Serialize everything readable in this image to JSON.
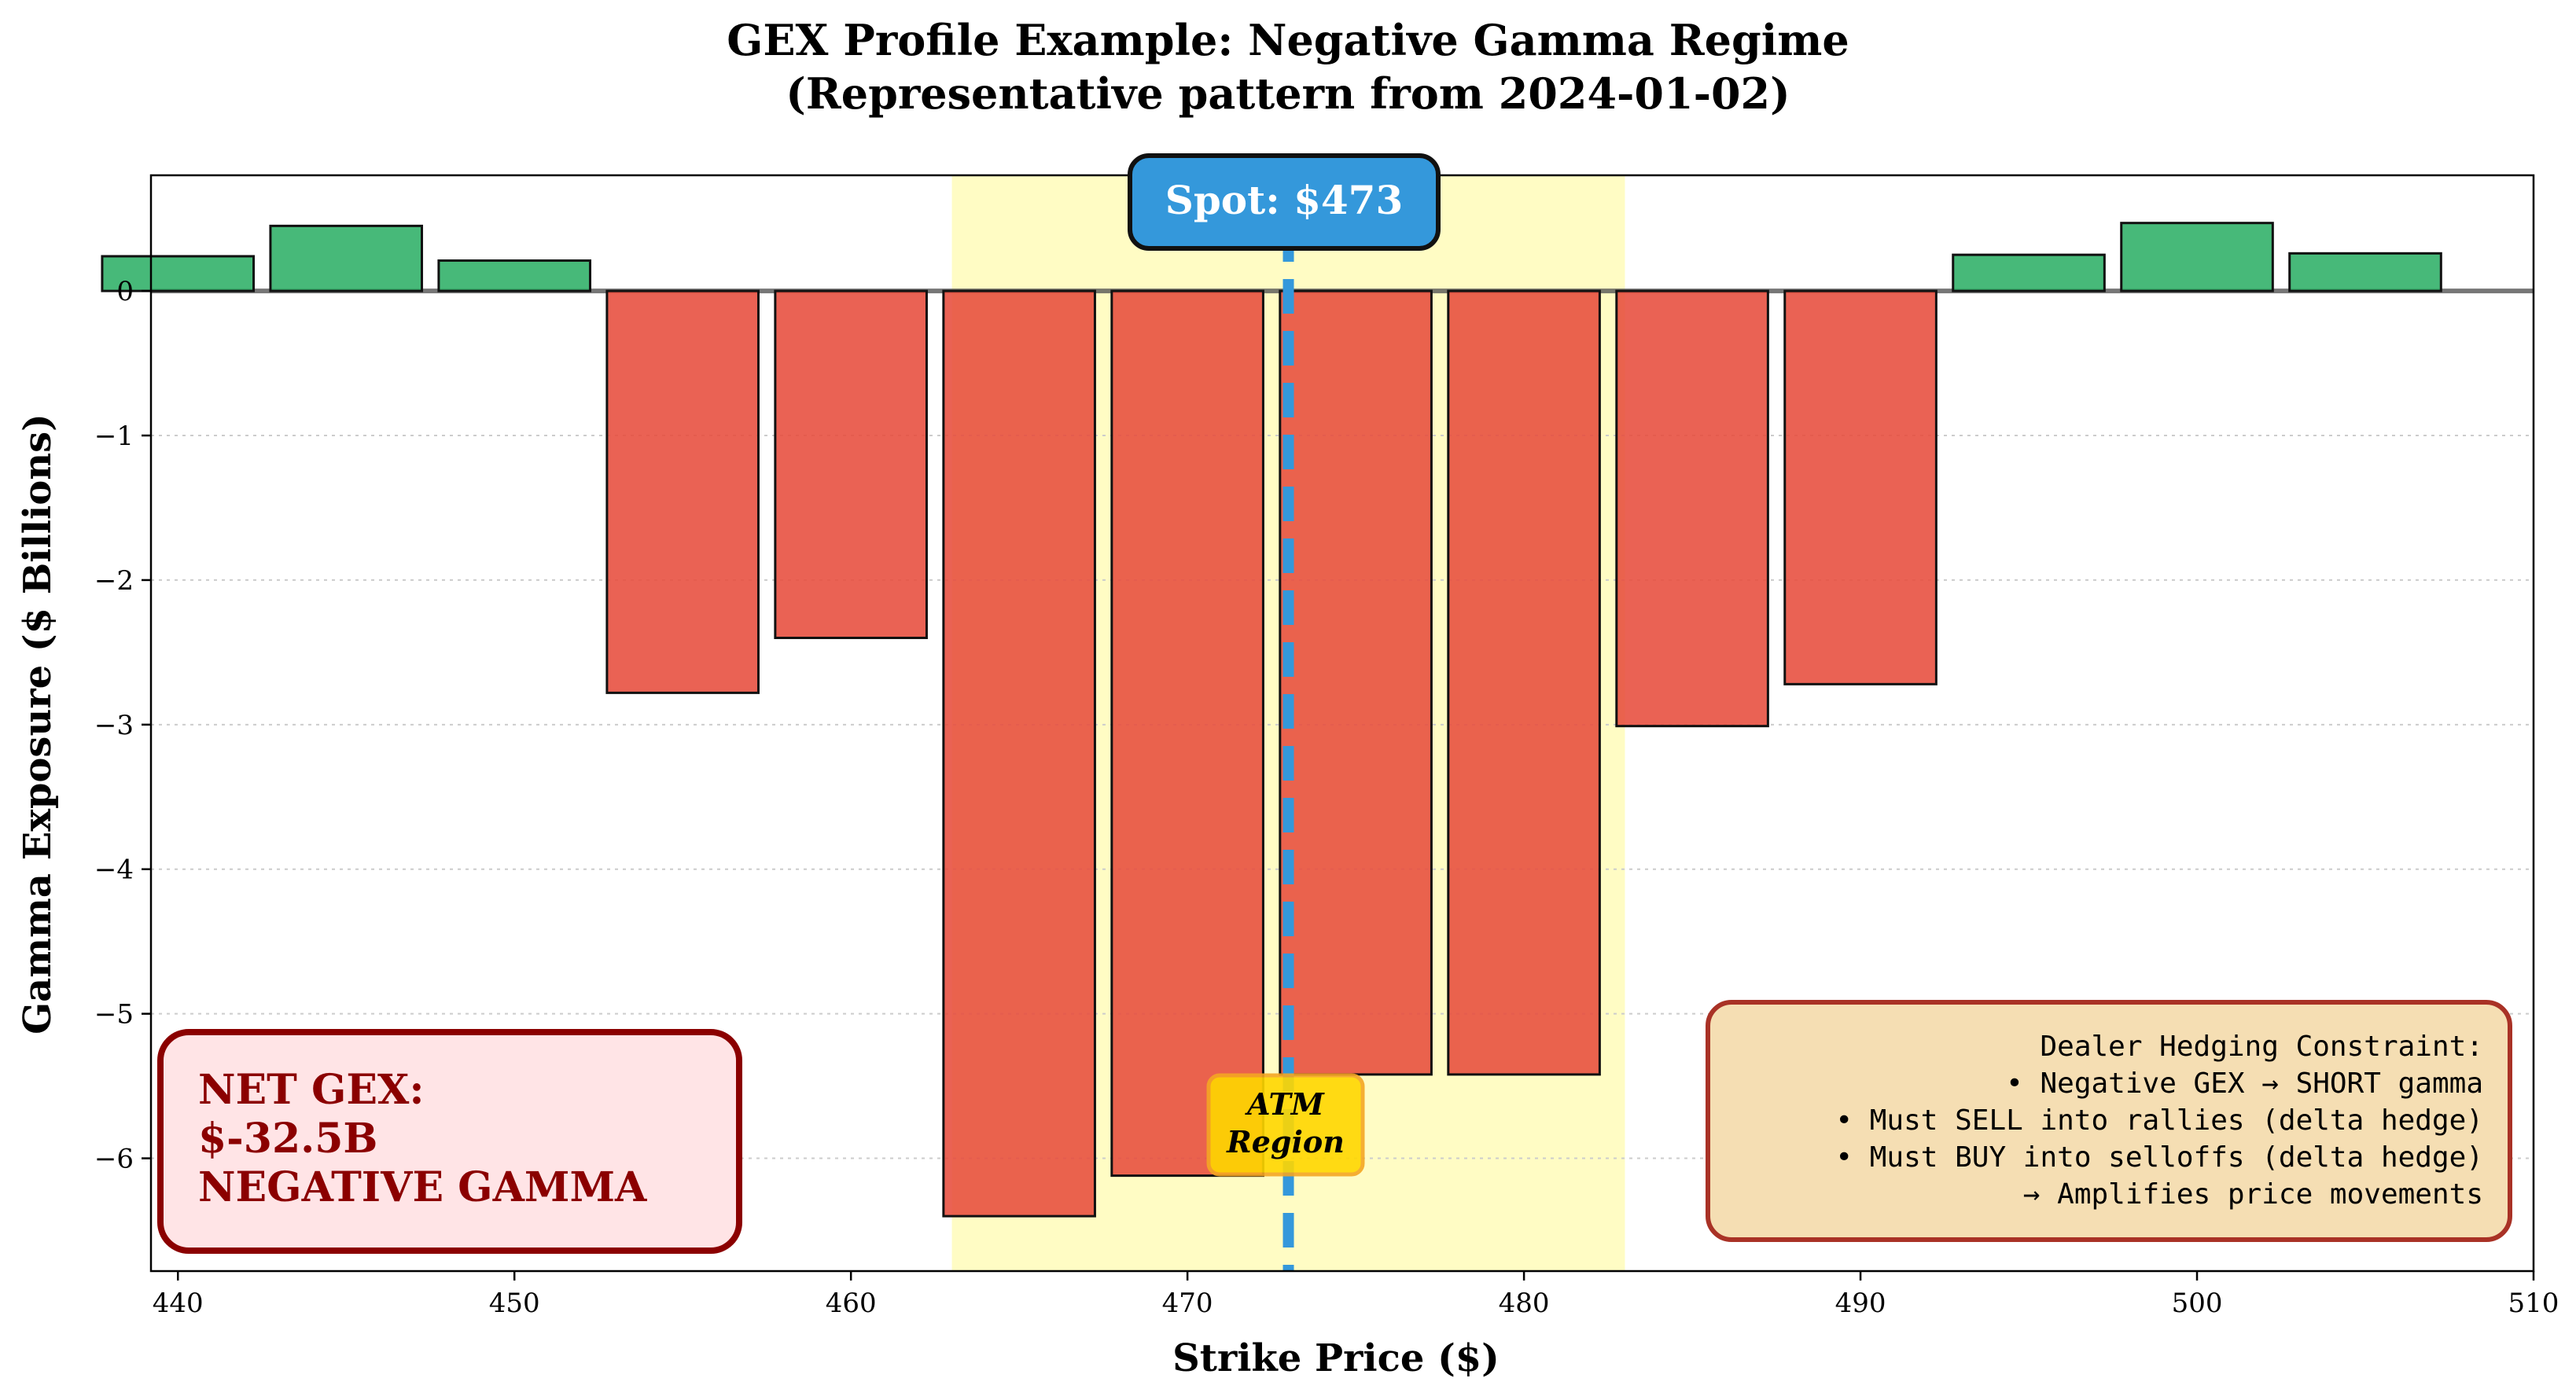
{
  "chart_data": {
    "type": "bar",
    "title_line1": "GEX Profile Example: Negative Gamma Regime",
    "title_line2": "(Representative pattern from 2024-01-02)",
    "xlabel": "Strike Price ($)",
    "ylabel": "Gamma Exposure ($ Billions)",
    "xlim": [
      439.2,
      510
    ],
    "ylim": [
      -6.78,
      0.8
    ],
    "xticks": [
      440,
      450,
      460,
      470,
      480,
      490,
      500,
      510
    ],
    "yticks": [
      0,
      -1,
      -2,
      -3,
      -4,
      -5,
      -6
    ],
    "ytick_labels": [
      "0",
      "−1",
      "−2",
      "−3",
      "−4",
      "−5",
      "−6"
    ],
    "bar_width": 4.5,
    "strikes": [
      440,
      445,
      450,
      455,
      460,
      465,
      470,
      475,
      480,
      485,
      490,
      495,
      500,
      505
    ],
    "values": [
      0.24,
      0.45,
      0.21,
      -2.78,
      -2.4,
      -6.4,
      -6.12,
      -5.42,
      -5.42,
      -3.01,
      -2.72,
      0.25,
      0.47,
      0.26
    ],
    "positive_color": "#2eaf66",
    "negative_color": "#e74c3c",
    "spot_price": 473,
    "spot_label": "Spot: $473",
    "spot_color": "#3498db",
    "atm_region": [
      463,
      483
    ],
    "atm_color": "#fffcc4",
    "atm_label_line1": "ATM",
    "atm_label_line2": "Region",
    "net_gex_box": {
      "line1": "NET GEX:",
      "line2": "$-32.5B",
      "line3": "NEGATIVE GAMMA"
    },
    "dealer_box": {
      "line1": "Dealer Hedging Constraint:",
      "line2": "• Negative GEX → SHORT gamma",
      "line3": "• Must SELL into rallies (delta hedge)",
      "line4": "• Must BUY into selloffs (delta hedge)",
      "line5": "→ Amplifies price movements"
    }
  }
}
